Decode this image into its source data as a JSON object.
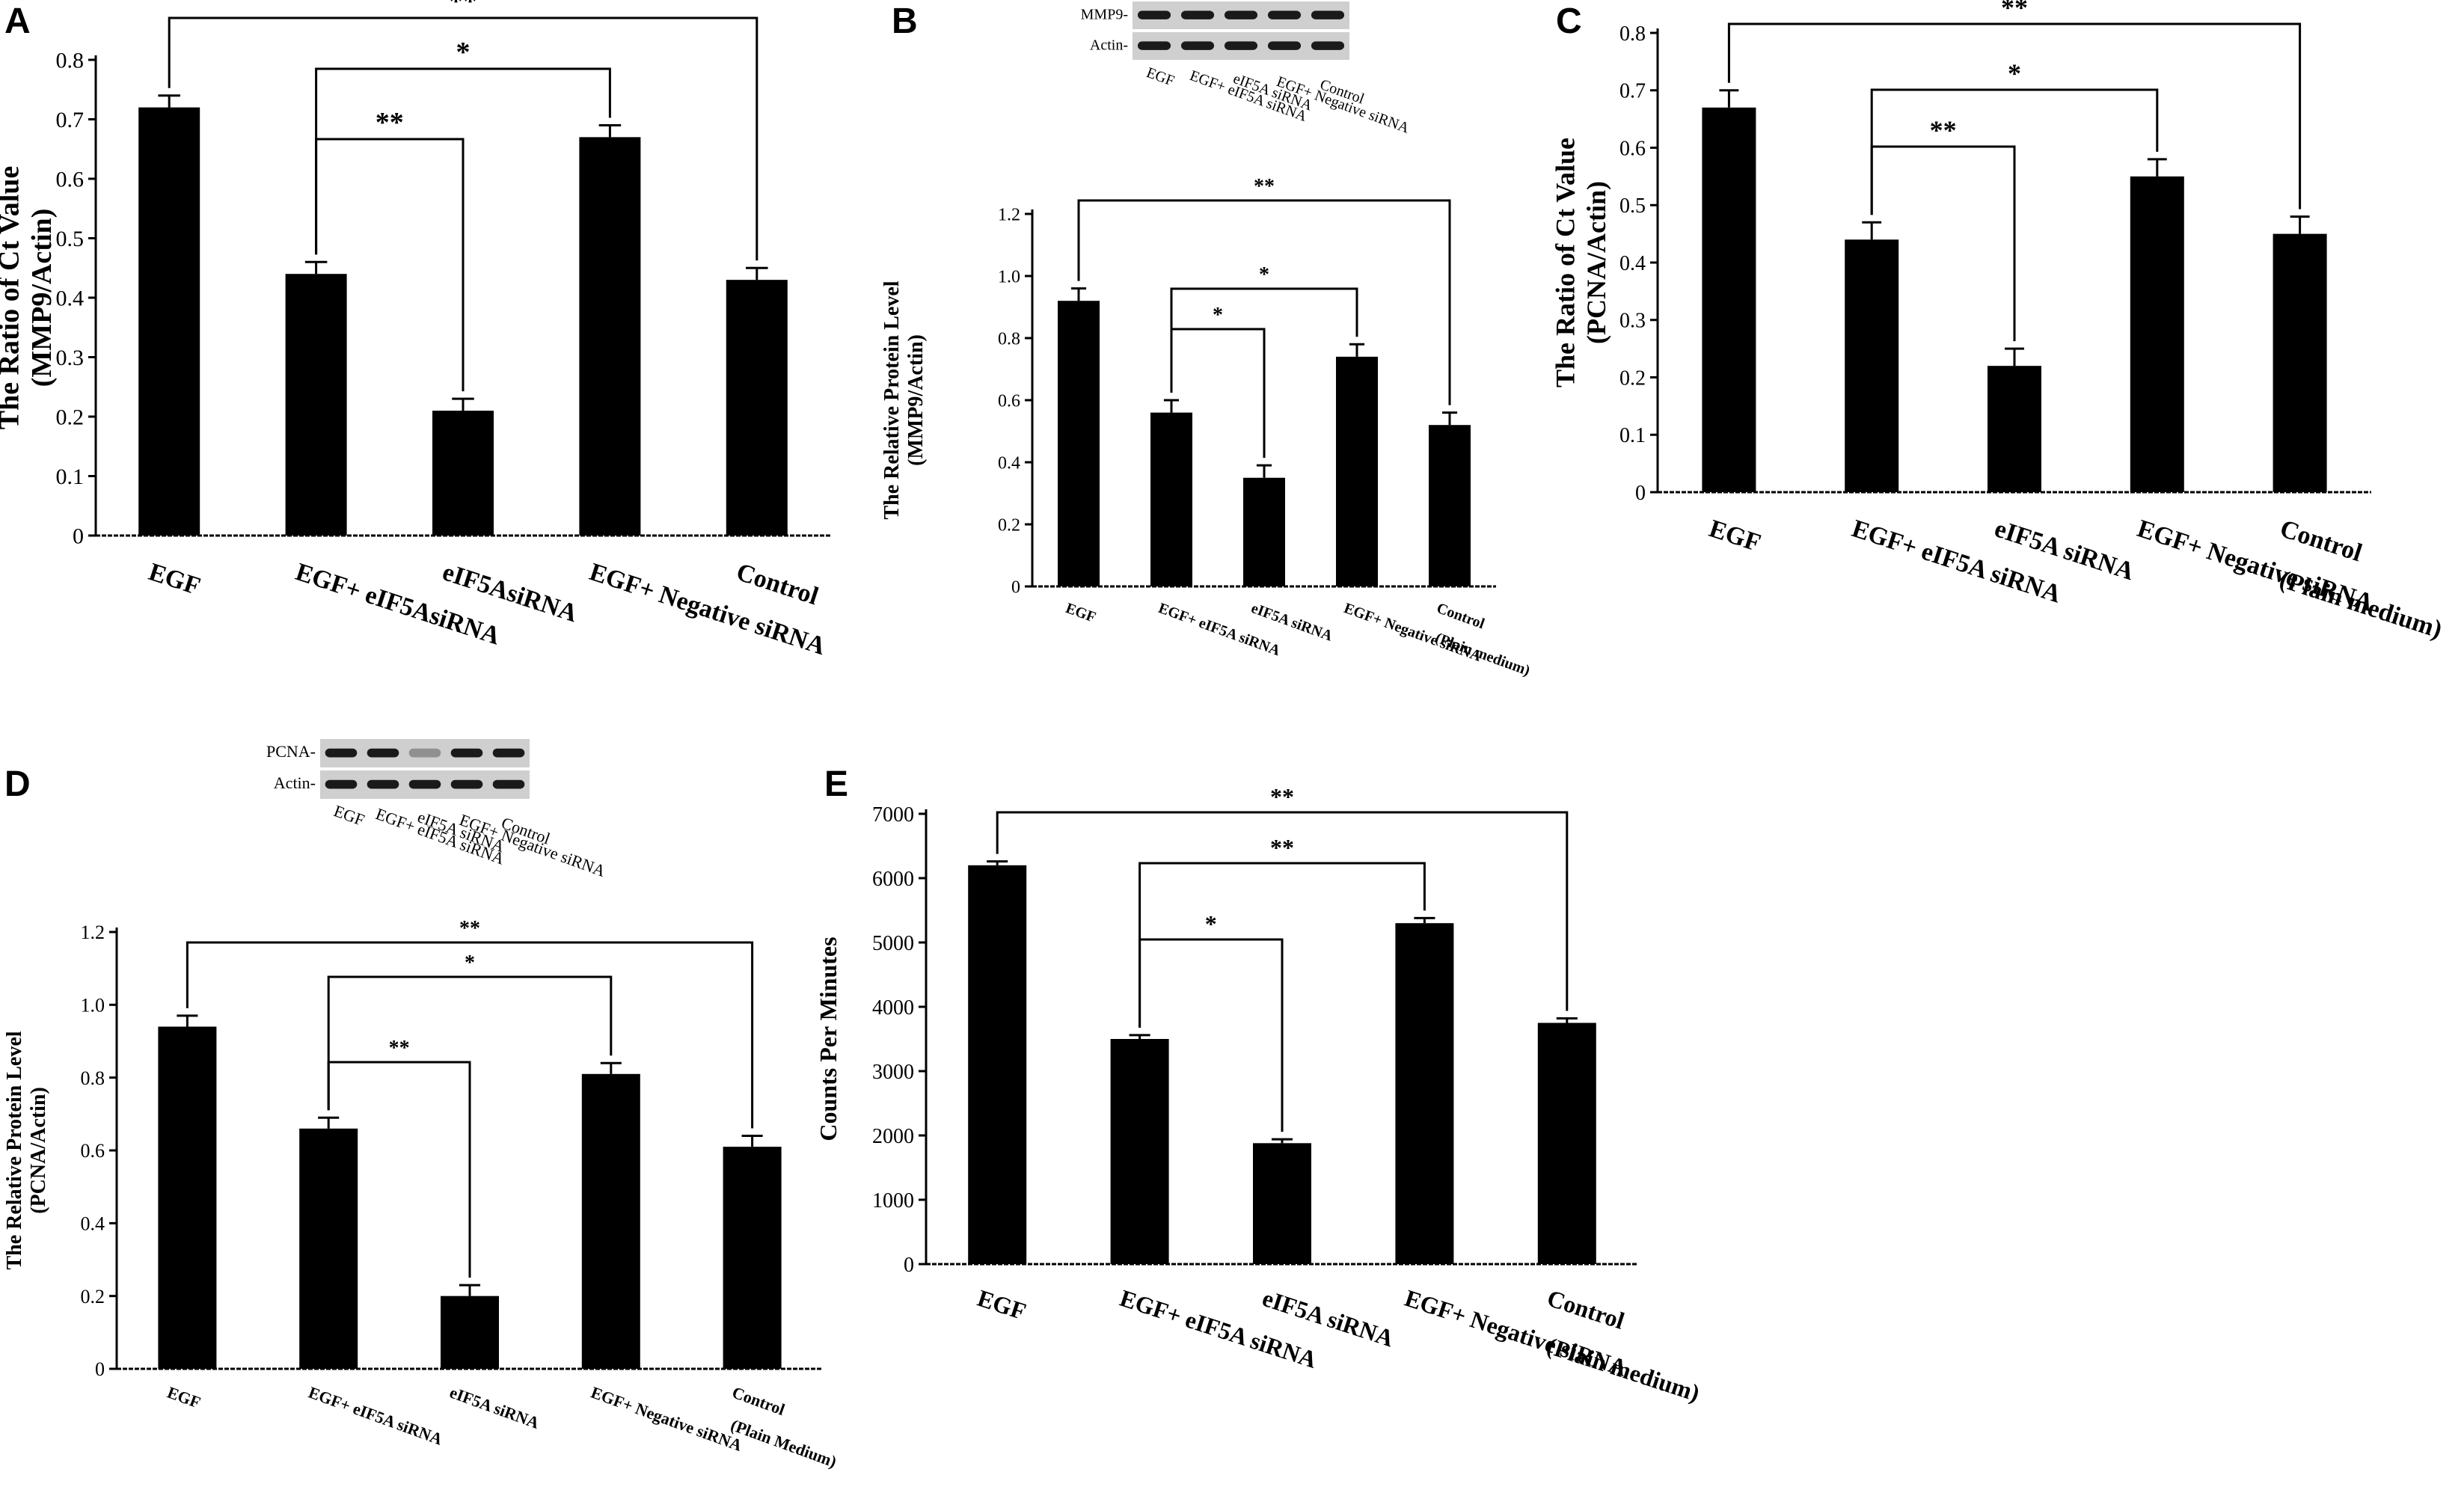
{
  "figure": {
    "colors": {
      "bar": "#000000",
      "axis": "#000000",
      "background": "#ffffff",
      "blot_bg": "#cfcfcf",
      "blot_band": "#1a1a1a"
    }
  },
  "chart_data": [
    {
      "panel": "A",
      "type": "bar",
      "ylabel": [
        "The Ratio of Ct Value",
        "(MMP9/Actin)"
      ],
      "categories": [
        "EGF",
        "EGF+ eIF5AsiRNA",
        "eIF5AsiRNA",
        "EGF+ Negative siRNA",
        "Control"
      ],
      "values": [
        0.72,
        0.44,
        0.21,
        0.67,
        0.43
      ],
      "errors": [
        0.02,
        0.02,
        0.02,
        0.02,
        0.02
      ],
      "ylim": [
        0,
        0.8
      ],
      "yticks": [
        0,
        0.1,
        0.2,
        0.3,
        0.4,
        0.5,
        0.6,
        0.7,
        0.8
      ],
      "ytick_labels": [
        "0",
        "0.1",
        "0.2",
        "0.3",
        "0.4",
        "0.5",
        "0.6",
        "0.7",
        "0.8"
      ],
      "significance": [
        {
          "from": 0,
          "to": 4,
          "label": "**"
        },
        {
          "from": 1,
          "to": 3,
          "label": "*"
        },
        {
          "from": 1,
          "to": 2,
          "label": "**"
        }
      ]
    },
    {
      "panel": "B",
      "type": "bar",
      "ylabel": [
        "The Relative Protein Level",
        "(MMP9/Actin)"
      ],
      "categories": [
        "EGF",
        "EGF+ eIF5A siRNA",
        "eIF5A siRNA",
        "EGF+ Negative siRNA",
        "Control\n(Plain medium)"
      ],
      "values": [
        0.92,
        0.56,
        0.35,
        0.74,
        0.52
      ],
      "errors": [
        0.04,
        0.04,
        0.04,
        0.04,
        0.04
      ],
      "ylim": [
        0,
        1.2
      ],
      "yticks": [
        0,
        0.2,
        0.4,
        0.6,
        0.8,
        1.0,
        1.2
      ],
      "ytick_labels": [
        "0",
        "0.2",
        "0.4",
        "0.6",
        "0.8",
        "1.0",
        "1.2"
      ],
      "significance": [
        {
          "from": 0,
          "to": 4,
          "label": "**"
        },
        {
          "from": 1,
          "to": 3,
          "label": "*"
        },
        {
          "from": 1,
          "to": 2,
          "label": "*"
        }
      ],
      "blot": {
        "rows": [
          "MMP9-",
          "Actin-"
        ],
        "lanes": [
          "EGF",
          "EGF+ eIF5A siRNA",
          "eIF5A siRNA",
          "EGF+ Negative siRNA",
          "Control"
        ]
      }
    },
    {
      "panel": "C",
      "type": "bar",
      "ylabel": [
        "The Ratio of Ct Value",
        "(PCNA/Actin)"
      ],
      "categories": [
        "EGF",
        "EGF+ eIF5A siRNA",
        "eIF5A siRNA",
        "EGF+ Negative siRNA",
        "Control\n(Plain medium)"
      ],
      "values": [
        0.67,
        0.44,
        0.22,
        0.55,
        0.45
      ],
      "errors": [
        0.03,
        0.03,
        0.03,
        0.03,
        0.03
      ],
      "ylim": [
        0,
        0.8
      ],
      "yticks": [
        0,
        0.1,
        0.2,
        0.3,
        0.4,
        0.5,
        0.6,
        0.7,
        0.8
      ],
      "ytick_labels": [
        "0",
        "0.1",
        "0.2",
        "0.3",
        "0.4",
        "0.5",
        "0.6",
        "0.7",
        "0.8"
      ],
      "significance": [
        {
          "from": 0,
          "to": 4,
          "label": "**"
        },
        {
          "from": 1,
          "to": 3,
          "label": "*"
        },
        {
          "from": 1,
          "to": 2,
          "label": "**"
        }
      ]
    },
    {
      "panel": "D",
      "type": "bar",
      "ylabel": [
        "The Relative Protein Level",
        "(PCNA/Actin)"
      ],
      "categories": [
        "EGF",
        "EGF+ eIF5A siRNA",
        "eIF5A siRNA",
        "EGF+ Negative siRNA",
        "Control\n(Plain Medium)"
      ],
      "values": [
        0.94,
        0.66,
        0.2,
        0.81,
        0.61
      ],
      "errors": [
        0.03,
        0.03,
        0.03,
        0.03,
        0.03
      ],
      "ylim": [
        0,
        1.2
      ],
      "yticks": [
        0,
        0.2,
        0.4,
        0.6,
        0.8,
        1.0,
        1.2
      ],
      "ytick_labels": [
        "0",
        "0.2",
        "0.4",
        "0.6",
        "0.8",
        "1.0",
        "1.2"
      ],
      "significance": [
        {
          "from": 0,
          "to": 4,
          "label": "**"
        },
        {
          "from": 1,
          "to": 3,
          "label": "*"
        },
        {
          "from": 1,
          "to": 2,
          "label": "**"
        }
      ],
      "blot": {
        "rows": [
          "PCNA-",
          "Actin-"
        ],
        "lanes": [
          "EGF",
          "EGF+ eIF5A siRNA",
          "eIF5A siRNA",
          "EGF+ Negative siRNA",
          "Control"
        ]
      }
    },
    {
      "panel": "E",
      "type": "bar",
      "ylabel": [
        "Counts Per Minutes"
      ],
      "categories": [
        "EGF",
        "EGF+ eIF5A siRNA",
        "eIF5A siRNA",
        "EGF+ Negative siRNA",
        "Control\n(Plain medium)"
      ],
      "values": [
        6200,
        3500,
        1880,
        5300,
        3750
      ],
      "errors": [
        60,
        60,
        60,
        80,
        70
      ],
      "ylim": [
        0,
        7000
      ],
      "yticks": [
        0,
        1000,
        2000,
        3000,
        4000,
        5000,
        6000,
        7000
      ],
      "ytick_labels": [
        "0",
        "1000",
        "2000",
        "3000",
        "4000",
        "5000",
        "6000",
        "7000"
      ],
      "significance": [
        {
          "from": 0,
          "to": 4,
          "label": "**"
        },
        {
          "from": 1,
          "to": 3,
          "label": "**"
        },
        {
          "from": 1,
          "to": 2,
          "label": "*"
        }
      ]
    }
  ]
}
